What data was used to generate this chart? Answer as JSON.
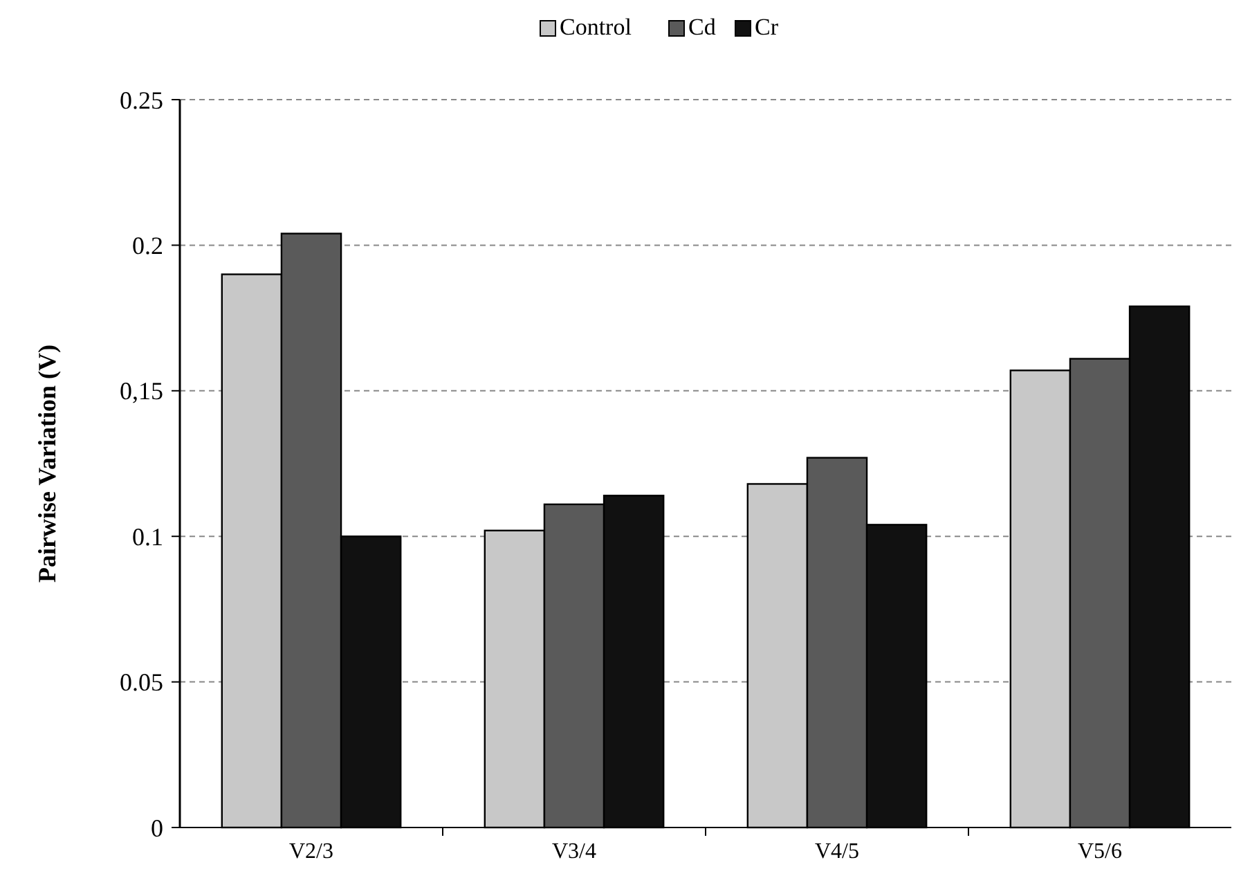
{
  "chart_data": {
    "type": "bar",
    "ylabel": "Pairwise Variation (V)",
    "categories": [
      "V2/3",
      "V3/4",
      "V4/5",
      "V5/6"
    ],
    "series": [
      {
        "name": "Control",
        "color": "#c8c8c8",
        "values": [
          0.19,
          0.102,
          0.118,
          0.157
        ]
      },
      {
        "name": "Cd",
        "color": "#5a5a5a",
        "values": [
          0.204,
          0.111,
          0.127,
          0.161
        ]
      },
      {
        "name": "Cr",
        "color": "#111111",
        "values": [
          0.1,
          0.114,
          0.104,
          0.179
        ]
      }
    ],
    "ylim": [
      0,
      0.25
    ],
    "yticks": [
      0,
      0.05,
      0.1,
      {
        "value": 0.15,
        "label": "0,15"
      },
      0.2,
      0.25
    ],
    "grid": "y",
    "legend": "top"
  }
}
